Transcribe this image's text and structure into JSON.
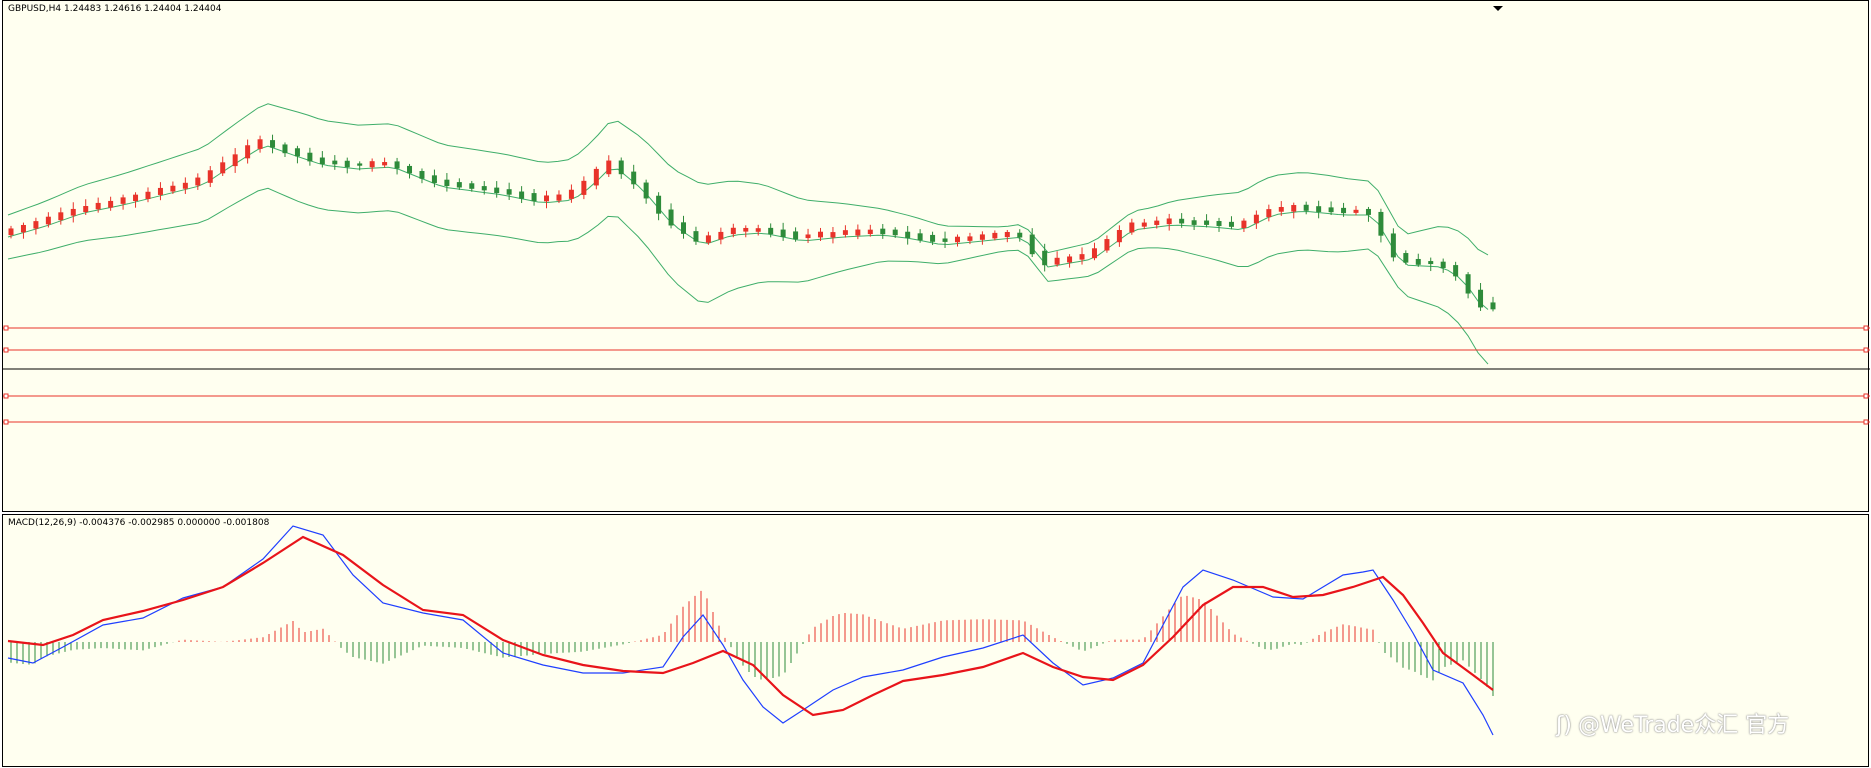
{
  "colors": {
    "background": "#fffff0",
    "bull": "#e8332a",
    "bear": "#2e8b3a",
    "band": "#3fae6a",
    "level_line": "#e8332a",
    "price_line": "#000000",
    "macd_main": "#1f3fff",
    "macd_signal": "#e8141a",
    "hist_up": "#e8332a",
    "hist_down": "#2e8b3a"
  },
  "price_pane": {
    "header": "GBPUSD,H4  1.24483 1.24616 1.24404 1.24404",
    "indicator": "Bollinger Bands",
    "horizontal_levels": [
      "level-1",
      "level-2",
      "current-price",
      "level-3",
      "level-4"
    ]
  },
  "macd_pane": {
    "header": "MACD(12,26,9) -0.004376 -0.002985 0.000000 -0.001808"
  },
  "watermark": {
    "icon": "weibo-logo-icon",
    "text": "@WeTrade众汇 官方"
  },
  "chart_data": {
    "type": "candlestick",
    "symbol": "GBPUSD",
    "timeframe": "H4",
    "last_bar": {
      "open": 1.24483,
      "high": 1.24616,
      "low": 1.24404,
      "close": 1.24404
    },
    "candle_count": 120,
    "macd": {
      "fast": 12,
      "slow": 26,
      "signal": 9,
      "main": -0.004376,
      "signal_value": -0.002985,
      "zero": 0.0,
      "histogram": -0.001808
    }
  }
}
